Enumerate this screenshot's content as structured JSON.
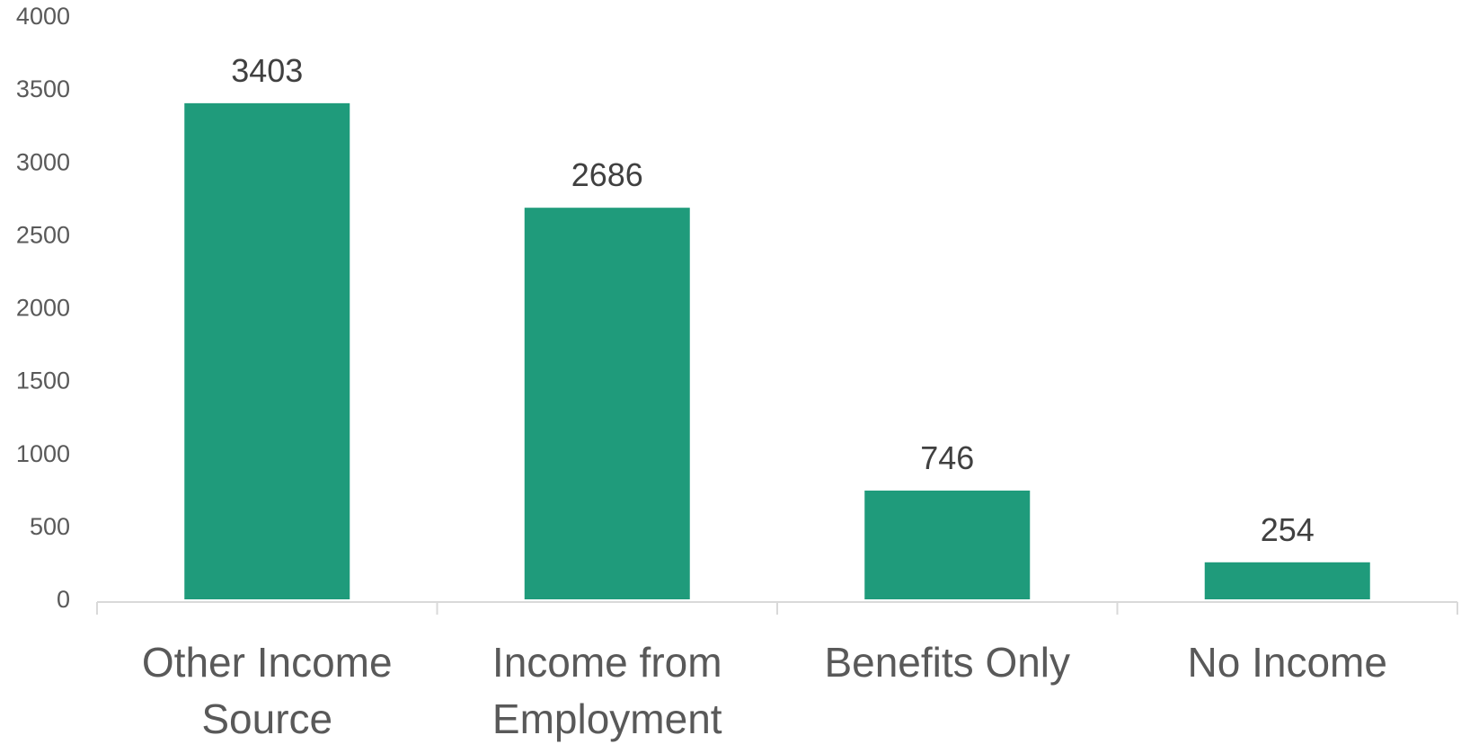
{
  "chart_data": {
    "type": "bar",
    "title": "",
    "xlabel": "",
    "ylabel": "",
    "categories": [
      [
        "Other Income",
        "Source"
      ],
      [
        "Income from",
        "Employment"
      ],
      [
        "Benefits Only"
      ],
      [
        "No Income"
      ]
    ],
    "values": [
      3403,
      2686,
      746,
      254
    ],
    "data_labels": [
      "3403",
      "2686",
      "746",
      "254"
    ],
    "ylim": [
      0,
      4000
    ],
    "yticks": [
      "0",
      "500",
      "1000",
      "1500",
      "2000",
      "2500",
      "3000",
      "3500",
      "4000"
    ],
    "grid": false,
    "legend": "none",
    "bar_color": "#1f9b7b"
  }
}
